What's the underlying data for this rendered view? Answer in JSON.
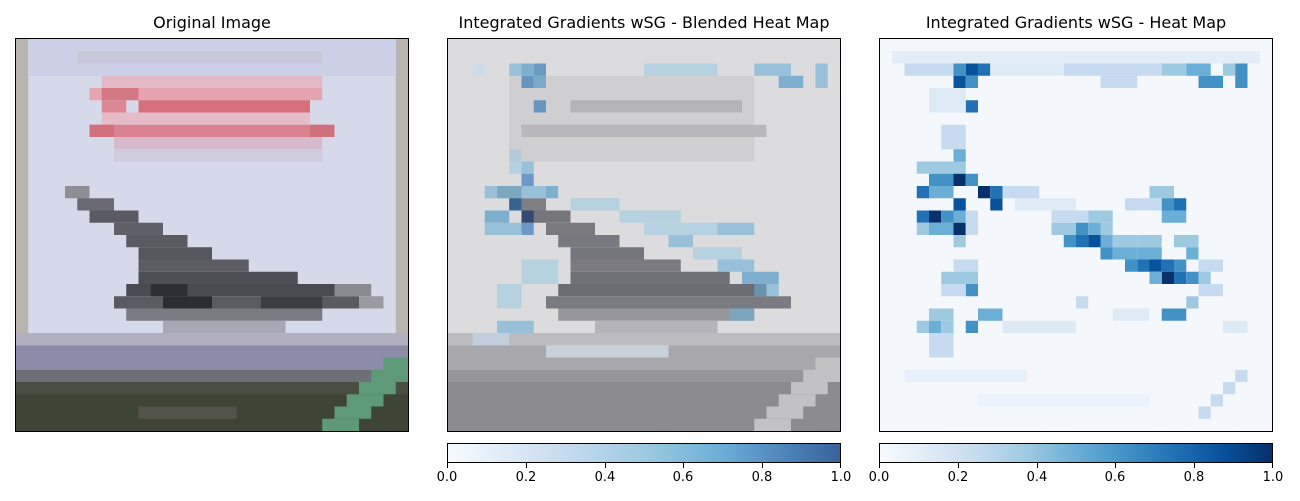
{
  "panels": [
    {
      "title": "Original Image"
    },
    {
      "title": "Integrated Gradients wSG - Blended Heat Map"
    },
    {
      "title": "Integrated Gradients wSG - Heat Map"
    }
  ],
  "colorbars": [
    {
      "ticks": [
        "0.0",
        "0.2",
        "0.4",
        "0.6",
        "0.8",
        "1.0"
      ]
    },
    {
      "ticks": [
        "0.0",
        "0.2",
        "0.4",
        "0.6",
        "0.8",
        "1.0"
      ]
    }
  ],
  "colormap": "Blues",
  "colors": {
    "sky": "#d4d8ea",
    "sign_red": "#d8707a",
    "plane_dark": "#4a4a52",
    "ground_dark": "#3e4436",
    "green_stripe": "#5e9a78",
    "heat_max": "#08306b",
    "heat_min": "#f7fbff"
  }
}
